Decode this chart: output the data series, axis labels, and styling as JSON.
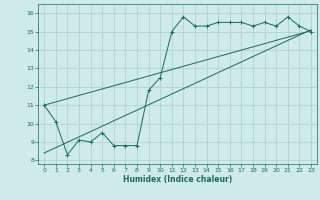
{
  "bg_color": "#ceeaea",
  "line_color": "#1a6b5a",
  "grid_color": "#aacece",
  "xlabel": "Humidex (Indice chaleur)",
  "xlim": [
    -0.5,
    23.5
  ],
  "ylim": [
    7.8,
    16.5
  ],
  "xticks": [
    0,
    1,
    2,
    3,
    4,
    5,
    6,
    7,
    8,
    9,
    10,
    11,
    12,
    13,
    14,
    15,
    16,
    17,
    18,
    19,
    20,
    21,
    22,
    23
  ],
  "yticks": [
    8,
    9,
    10,
    11,
    12,
    13,
    14,
    15,
    16
  ],
  "curve1_x": [
    0,
    1,
    2,
    3,
    4,
    5,
    6,
    7,
    8,
    9,
    10,
    11,
    12,
    13,
    14,
    15,
    16,
    17,
    18,
    19,
    20,
    21,
    22,
    23
  ],
  "curve1_y": [
    11.0,
    10.1,
    8.3,
    9.1,
    9.0,
    9.5,
    8.8,
    8.8,
    8.8,
    11.8,
    12.5,
    15.0,
    15.8,
    15.3,
    15.3,
    15.5,
    15.5,
    15.5,
    15.3,
    15.5,
    15.3,
    15.8,
    15.3,
    15.0
  ],
  "line2_x": [
    0,
    23
  ],
  "line2_y": [
    8.4,
    15.1
  ],
  "line3_x": [
    0,
    23
  ],
  "line3_y": [
    11.0,
    15.05
  ],
  "figsize": [
    3.2,
    2.0
  ],
  "dpi": 100
}
